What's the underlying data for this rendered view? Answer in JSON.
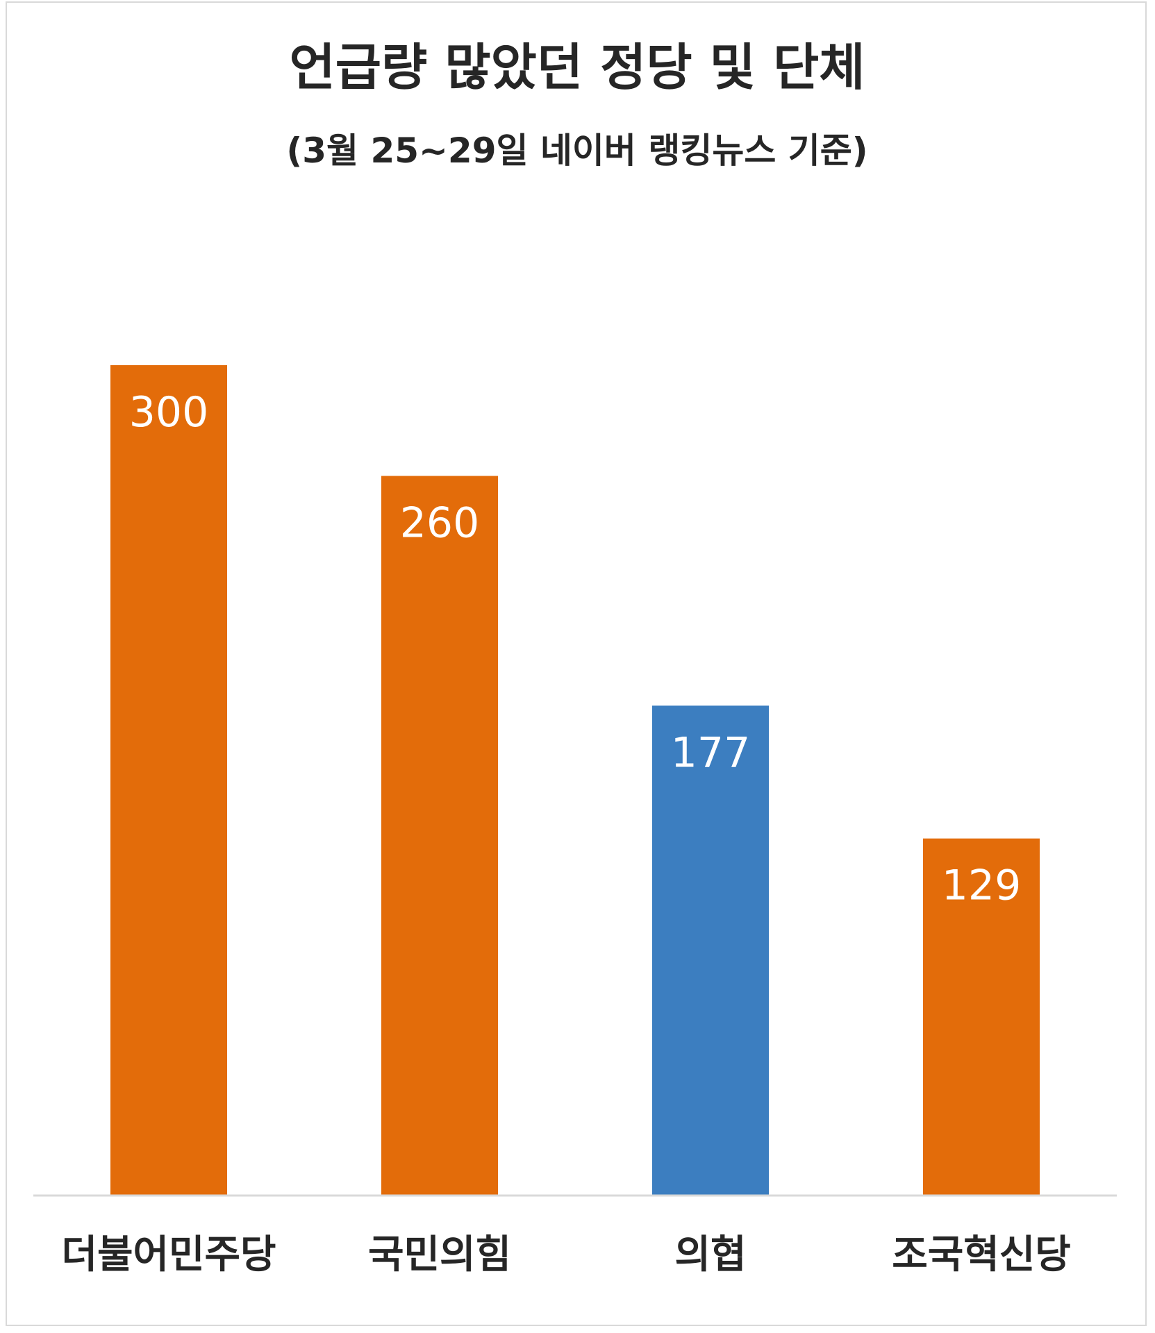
{
  "chart_data": {
    "type": "bar",
    "title": "언급량 많았던 정당 및 단체",
    "subtitle": "(3월 25~29일 네이버 랭킹뉴스 기준)",
    "categories": [
      "더불어민주당",
      "국민의힘",
      "의협",
      "조국혁신당"
    ],
    "values": [
      300,
      260,
      177,
      129
    ],
    "bar_colors": [
      "#e36c0a",
      "#e36c0a",
      "#3c7ec0",
      "#e36c0a"
    ],
    "ylim": [
      0,
      300
    ],
    "grid": false,
    "legend": "none",
    "data_labels": "inside-top"
  },
  "colors": {
    "accent_orange": "#e36c0a",
    "accent_blue": "#3c7ec0",
    "axis_line": "#d9d9d9",
    "frame_border": "#d9d9d9"
  }
}
